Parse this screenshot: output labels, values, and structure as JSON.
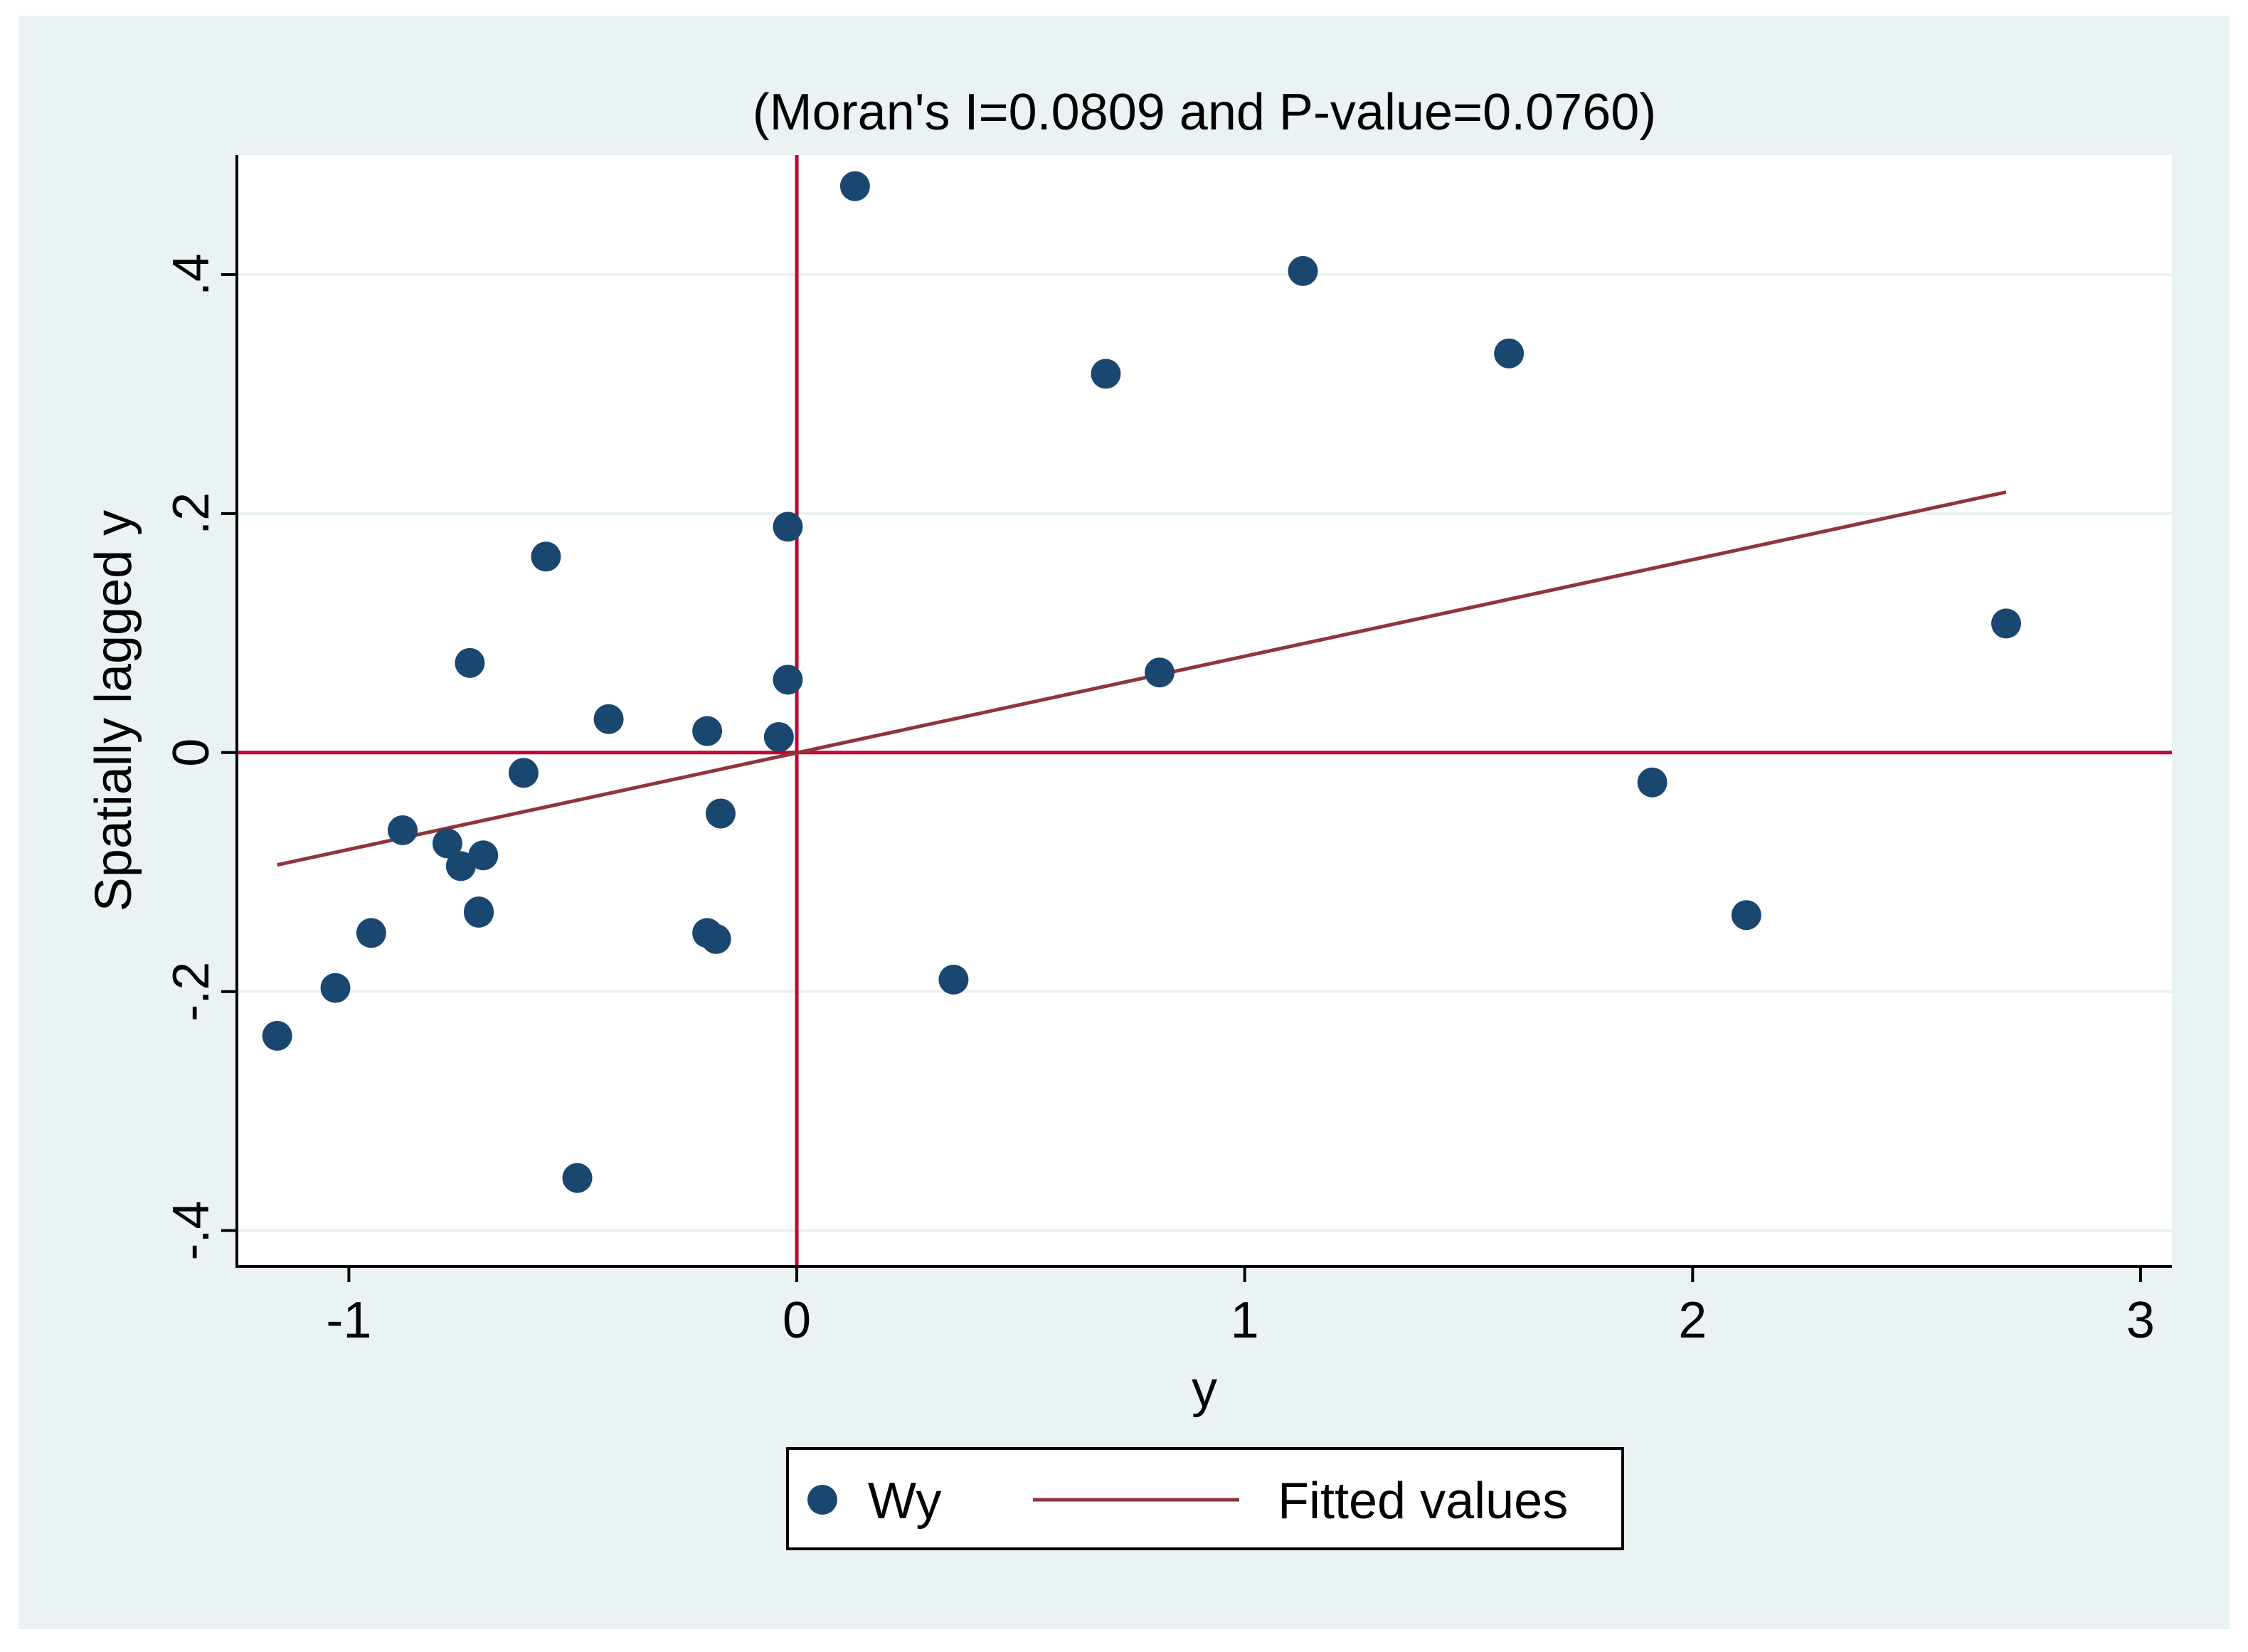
{
  "chart_data": {
    "type": "scatter",
    "title": "(Moran's I=0.0809 and P-value=0.0760)",
    "xlabel": "y",
    "ylabel": "Spatially lagged y",
    "xlim": [
      -1.25,
      3.07
    ],
    "ylim": [
      -0.43,
      0.5
    ],
    "x_ticks": [
      -1,
      0,
      1,
      2,
      3
    ],
    "x_tick_labels": [
      "-1",
      "0",
      "1",
      "2",
      "3"
    ],
    "y_ticks": [
      -0.4,
      -0.2,
      0,
      0.2,
      0.4
    ],
    "y_tick_labels": [
      "-.4",
      "-.2",
      "0",
      ".2",
      ".4"
    ],
    "grid": true,
    "reference_lines": {
      "x": 0,
      "y": 0
    },
    "series": [
      {
        "name": "Wy",
        "kind": "scatter",
        "x": [
          -1.16,
          -1.03,
          -0.95,
          -0.88,
          -0.78,
          -0.75,
          -0.73,
          -0.71,
          -0.71,
          -0.7,
          -0.61,
          -0.56,
          -0.49,
          -0.42,
          -0.2,
          -0.2,
          -0.18,
          -0.17,
          -0.04,
          -0.02,
          -0.02,
          0.13,
          0.35,
          0.69,
          0.81,
          1.13,
          1.59,
          1.91,
          2.12,
          2.7
        ],
        "y": [
          -0.237,
          -0.197,
          -0.151,
          -0.065,
          -0.076,
          -0.095,
          0.075,
          -0.134,
          -0.133,
          -0.086,
          -0.017,
          0.164,
          -0.356,
          0.028,
          0.018,
          -0.151,
          -0.156,
          -0.051,
          0.013,
          0.061,
          0.189,
          0.474,
          -0.19,
          0.317,
          0.067,
          0.403,
          0.334,
          -0.025,
          -0.136,
          0.108
        ]
      },
      {
        "name": "Fitted values",
        "kind": "line",
        "x": [
          -1.16,
          2.7
        ],
        "y": [
          -0.094,
          0.218
        ]
      }
    ],
    "legend": {
      "position": "bottom",
      "entries": [
        "Wy",
        "Fitted values"
      ]
    },
    "colors": {
      "outer_background": "#eaf2f3",
      "plot_background": "#ffffff",
      "grid": "#eaf2f3",
      "markers": "#1a476f",
      "fitted_line": "#90353b",
      "reference_lines": "#c10534",
      "axis": "#000000"
    }
  }
}
